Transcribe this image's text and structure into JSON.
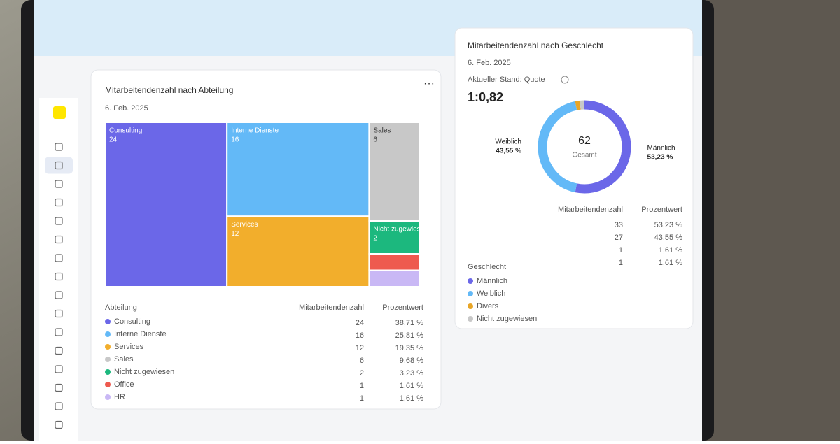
{
  "cards": [
    {
      "title": "Mitarbeitendenzahl nach Abteilung",
      "date": "6. Feb. 2025",
      "menu": "···",
      "chart": {
        "type": "treemap",
        "legend_title": "Abteilung",
        "categories": [
          "Consulting",
          "Interne Dienste",
          "Services",
          "Sales",
          "Nicht zugewiesen",
          "Office",
          "HR"
        ],
        "values": [
          24,
          16,
          12,
          6,
          2,
          1,
          1
        ],
        "colors": [
          "#6b67e8",
          "#63b9f7",
          "#f2ae2c",
          "#c8c8c8",
          "#1cb87e",
          "#ee5a4f",
          "#c9b8f5"
        ]
      },
      "table": {
        "headers": [
          "Mitarbeitendenzahl",
          "Prozentwert"
        ],
        "percent_labels": [
          "38,71 %",
          "25,81 %",
          "19,35 %",
          "9,68 %",
          "3,23 %",
          "1,61 %",
          "1,61 %"
        ]
      }
    },
    {
      "title": "Mitarbeitendenzahl nach Geschlecht",
      "date": "6. Feb. 2025",
      "kpi_label": "Aktueller Stand: Quote",
      "kpi_value": "1:0,82",
      "chart": {
        "type": "donut",
        "legend_title": "Geschlecht",
        "categories": [
          "Männlich",
          "Weiblich",
          "Divers",
          "Nicht zugewiesen"
        ],
        "values": [
          33,
          27,
          1,
          1
        ],
        "colors": [
          "#6b67e8",
          "#63b9f7",
          "#e8a526",
          "#c8c8c8"
        ],
        "total": 62,
        "total_label": "Gesamt"
      },
      "table": {
        "headers": [
          "Mitarbeitendenzahl",
          "Prozentwert"
        ],
        "percent_labels": [
          "53,23 %",
          "43,55 %",
          "1,61 %",
          "1,61 %"
        ]
      }
    }
  ]
}
